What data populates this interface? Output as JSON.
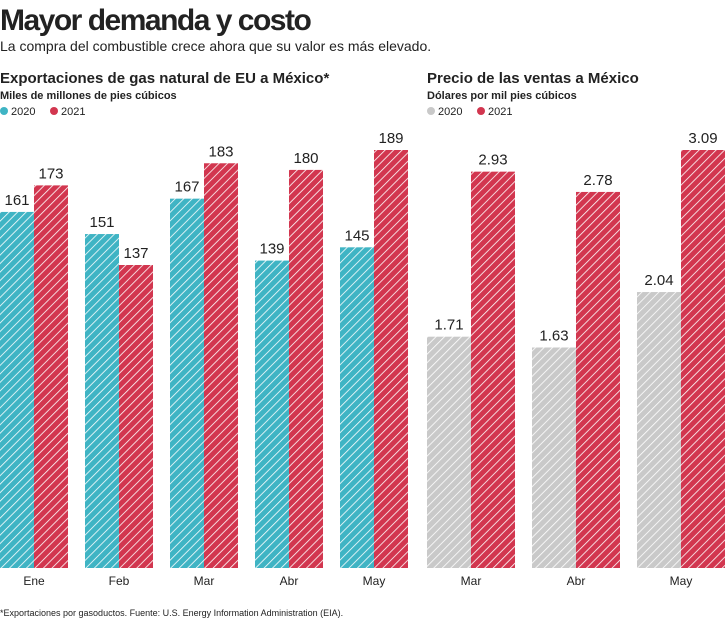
{
  "header": {
    "title": "Mayor demanda y costo",
    "subtitle": "La compra del combustible crece ahora que su valor es más elevado."
  },
  "footnote": "*Exportaciones por gasoductos. Fuente: U.S. Energy Information Administration (EIA).",
  "chart_data": [
    {
      "type": "bar",
      "title": "Exportaciones de gas natural de EU a México*",
      "subtitle": "Miles de millones de pies cúbicos",
      "categories": [
        "Ene",
        "Feb",
        "Mar",
        "Abr",
        "May"
      ],
      "series": [
        {
          "name": "2020",
          "color": "#3fb4c4",
          "values": [
            161,
            151,
            167,
            139,
            145
          ]
        },
        {
          "name": "2021",
          "color": "#d2364f",
          "values": [
            173,
            137,
            183,
            180,
            189
          ]
        }
      ]
    },
    {
      "type": "bar",
      "title": "Precio de las ventas a México",
      "subtitle": "Dólares por mil pies cúbicos",
      "categories": [
        "Mar",
        "Abr",
        "May"
      ],
      "series": [
        {
          "name": "2020",
          "color": "#c9c9c9",
          "values": [
            1.71,
            1.63,
            2.04
          ]
        },
        {
          "name": "2021",
          "color": "#d2364f",
          "values": [
            2.93,
            2.78,
            3.09
          ]
        }
      ]
    }
  ]
}
